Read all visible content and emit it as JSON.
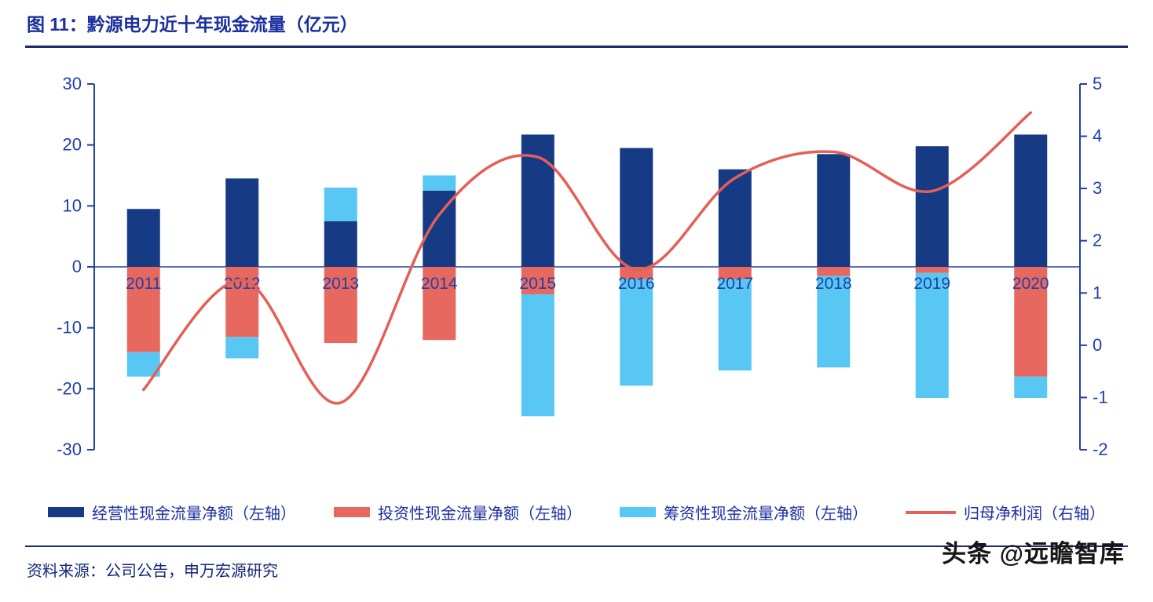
{
  "title": "图 11：黔源电力近十年现金流量（亿元）",
  "source": "资料来源：公司公告，申万宏源研究",
  "watermark": "头条 @远瞻智库",
  "colors": {
    "title_text": "#1a2fa0",
    "legend_text": "#1a2fa0",
    "source_text": "#14267a",
    "rule": "#1b2a6b",
    "axis_text": "#2140a8",
    "axis_line": "#2140a8",
    "watermark_text": "#161616"
  },
  "chart_data": {
    "type": "bar",
    "subtype": "stacked-bars-with-line",
    "title": "黔源电力近十年现金流量（亿元）",
    "categories": [
      "2011",
      "2012",
      "2013",
      "2014",
      "2015",
      "2016",
      "2017",
      "2018",
      "2019",
      "2020"
    ],
    "series": [
      {
        "name": "经营性现金流量净额（左轴）",
        "type": "bar",
        "axis": "left",
        "color": "#173a85",
        "values": [
          9.5,
          14.5,
          7.5,
          12.5,
          21.7,
          19.5,
          16.0,
          18.5,
          19.8,
          21.7
        ]
      },
      {
        "name": "投资性现金流量净额（左轴）",
        "type": "bar",
        "axis": "left",
        "color": "#e7685e",
        "values": [
          -14.0,
          -11.5,
          -12.5,
          -12.0,
          -4.5,
          -2.0,
          -2.0,
          -1.5,
          -1.0,
          -18.0
        ]
      },
      {
        "name": "筹资性现金流量净额（左轴）",
        "type": "bar",
        "axis": "left",
        "color": "#58c7f3",
        "values": [
          -4.0,
          -3.5,
          5.5,
          2.5,
          -20.0,
          -17.5,
          -15.0,
          -15.0,
          -20.5,
          -3.5
        ]
      },
      {
        "name": "归母净利润（右轴）",
        "type": "line",
        "axis": "right",
        "color": "#e45f55",
        "values": [
          -0.85,
          1.25,
          -1.1,
          2.5,
          3.6,
          1.45,
          3.2,
          3.7,
          2.95,
          4.45
        ]
      }
    ],
    "left_axis": {
      "min": -30,
      "max": 30,
      "ticks": [
        30,
        20,
        10,
        0,
        -10,
        -20,
        -30
      ]
    },
    "right_axis": {
      "min": -2,
      "max": 5,
      "ticks": [
        5,
        4,
        3,
        2,
        1,
        0,
        -1,
        -2
      ]
    },
    "grid": false,
    "legend_position": "bottom"
  }
}
